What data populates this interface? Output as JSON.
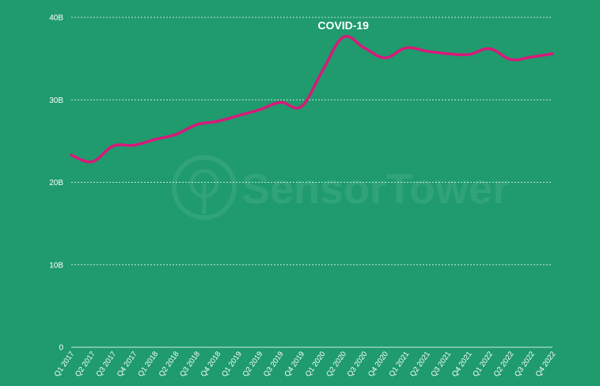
{
  "colors": {
    "background": "#1f9b6e",
    "series": "#d8197a",
    "text": "#ffffff"
  },
  "watermark": {
    "text": "SensorTower",
    "icon": "sensor-tower-logo-icon"
  },
  "chart_data": {
    "type": "line",
    "title": "",
    "xlabel": "",
    "ylabel": "",
    "ylim": [
      0,
      40
    ],
    "yticks": [
      {
        "value": 0,
        "label": "0"
      },
      {
        "value": 10,
        "label": "10B"
      },
      {
        "value": 20,
        "label": "20B"
      },
      {
        "value": 30,
        "label": "30B"
      },
      {
        "value": 40,
        "label": "40B"
      }
    ],
    "grid": true,
    "categories": [
      "Q1 2017",
      "Q2 2017",
      "Q3 2017",
      "Q4 2017",
      "Q1 2018",
      "Q2 2018",
      "Q3 2018",
      "Q4 2018",
      "Q1 2019",
      "Q2 2019",
      "Q3 2019",
      "Q4 2019",
      "Q1 2020",
      "Q2 2020",
      "Q3 2020",
      "Q4 2020",
      "Q1 2021",
      "Q2 2021",
      "Q3 2021",
      "Q4 2021",
      "Q1 2022",
      "Q2 2022",
      "Q3 2022",
      "Q4 2022"
    ],
    "series": [
      {
        "values": [
          23.3,
          22.5,
          24.4,
          24.5,
          25.2,
          25.8,
          27.0,
          27.4,
          28.1,
          28.8,
          29.7,
          29.2,
          33.5,
          37.6,
          36.3,
          35.1,
          36.3,
          35.9,
          35.6,
          35.5,
          36.2,
          34.9,
          35.2,
          35.6
        ]
      }
    ],
    "annotations": [
      {
        "label": "COVID-19",
        "category": "Q2 2020"
      }
    ]
  }
}
